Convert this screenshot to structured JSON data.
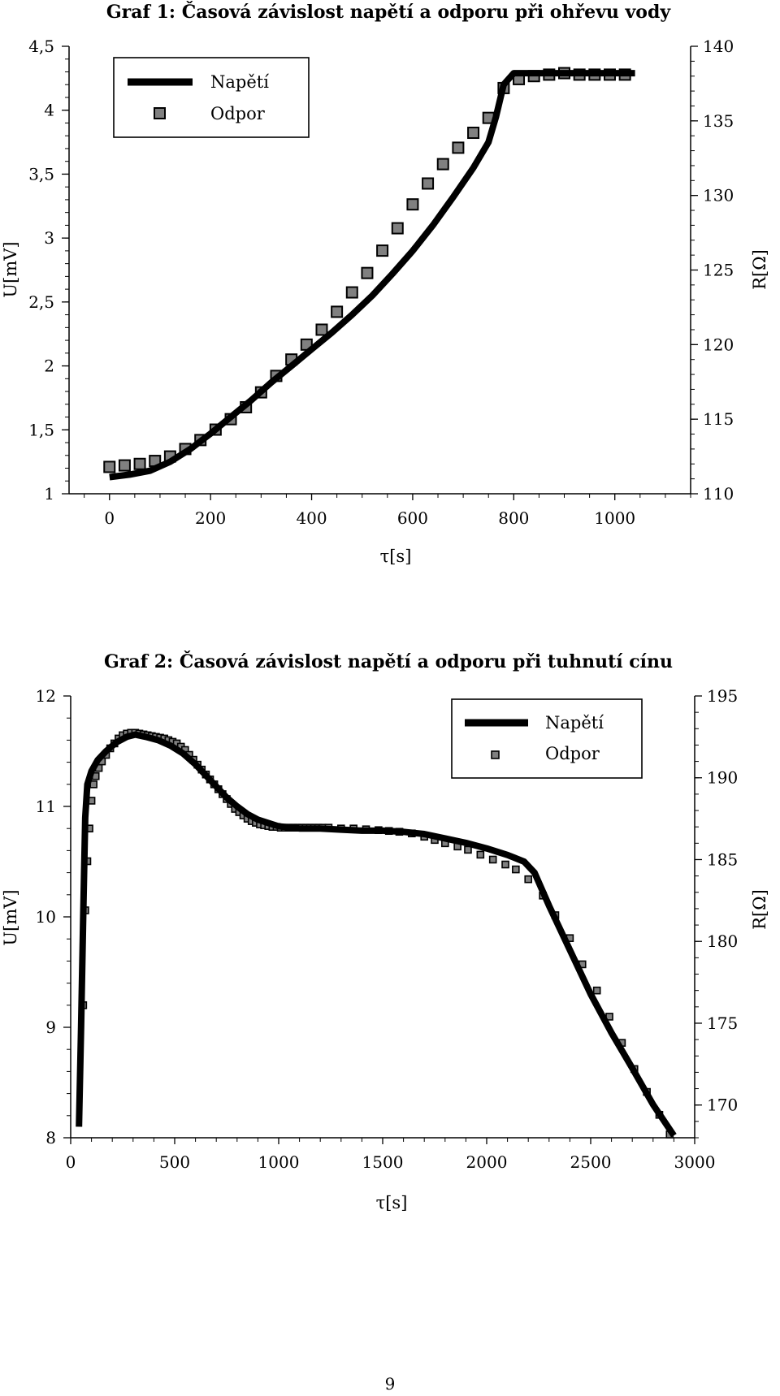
{
  "page": {
    "number": "9"
  },
  "chart_data": [
    {
      "type": "line",
      "title": "Graf 1: Časová závislost napětí a odporu při ohřevu vody",
      "xlabel": "τ[s]",
      "ylabel": "U[mV]",
      "ylabel_right": "R[Ω]",
      "xlim": [
        -80,
        1150
      ],
      "ylim": [
        1,
        4.5
      ],
      "ylim_right": [
        110,
        140
      ],
      "xticks": [
        "0",
        "200",
        "400",
        "600",
        "800",
        "1000"
      ],
      "yticks": [
        "1",
        "1,5",
        "2",
        "2,5",
        "3",
        "3,5",
        "4",
        "4,5"
      ],
      "yticks_right": [
        "110",
        "115",
        "120",
        "125",
        "130",
        "135",
        "140"
      ],
      "legend_position": "top-left",
      "grid": false,
      "series": [
        {
          "name": "Napětí",
          "axis": "left",
          "style": "line",
          "color": "#000000",
          "x": [
            0,
            40,
            80,
            120,
            160,
            200,
            240,
            280,
            320,
            360,
            400,
            440,
            480,
            520,
            560,
            600,
            640,
            680,
            720,
            750,
            765,
            780,
            800,
            840,
            900,
            960,
            1040
          ],
          "y": [
            1.13,
            1.15,
            1.18,
            1.25,
            1.35,
            1.47,
            1.6,
            1.73,
            1.87,
            2.0,
            2.13,
            2.26,
            2.4,
            2.55,
            2.72,
            2.9,
            3.1,
            3.32,
            3.55,
            3.75,
            3.95,
            4.2,
            4.29,
            4.29,
            4.29,
            4.29,
            4.29
          ]
        },
        {
          "name": "Odpor",
          "axis": "right",
          "style": "square-markers",
          "color": "#808080",
          "x": [
            0,
            30,
            60,
            90,
            120,
            150,
            180,
            210,
            240,
            270,
            300,
            330,
            360,
            390,
            420,
            450,
            480,
            510,
            540,
            570,
            600,
            630,
            660,
            690,
            720,
            750,
            780,
            810,
            840,
            870,
            900,
            930,
            960,
            990,
            1020
          ],
          "y": [
            111.8,
            111.9,
            112.0,
            112.2,
            112.5,
            113.0,
            113.6,
            114.3,
            115.0,
            115.8,
            116.8,
            117.9,
            119.0,
            120.0,
            121.0,
            122.2,
            123.5,
            124.8,
            126.3,
            127.8,
            129.4,
            130.8,
            132.1,
            133.2,
            134.2,
            135.2,
            137.2,
            137.8,
            138.0,
            138.1,
            138.2,
            138.1,
            138.1,
            138.1,
            138.1
          ]
        }
      ]
    },
    {
      "type": "line",
      "title": "Graf 2: Časová závislost napětí a odporu při tuhnutí cínu",
      "xlabel": "τ[s]",
      "ylabel": "U[mV]",
      "ylabel_right": "R[Ω]",
      "xlim": [
        0,
        3000
      ],
      "ylim": [
        8,
        12
      ],
      "ylim_right": [
        168,
        195
      ],
      "xticks": [
        "0",
        "500",
        "1000",
        "1500",
        "2000",
        "2500",
        "3000"
      ],
      "yticks": [
        "8",
        "9",
        "10",
        "11",
        "12"
      ],
      "yticks_right": [
        "170",
        "175",
        "180",
        "185",
        "190",
        "195"
      ],
      "legend_position": "top-right",
      "grid": false,
      "series": [
        {
          "name": "Napětí",
          "axis": "left",
          "style": "line",
          "color": "#000000",
          "x": [
            40,
            50,
            60,
            70,
            80,
            100,
            130,
            170,
            220,
            270,
            310,
            360,
            420,
            480,
            540,
            600,
            650,
            700,
            750,
            800,
            850,
            900,
            950,
            1000,
            1100,
            1200,
            1300,
            1400,
            1500,
            1600,
            1700,
            1800,
            1900,
            2000,
            2100,
            2180,
            2230,
            2300,
            2400,
            2500,
            2600,
            2700,
            2800,
            2900
          ],
          "y": [
            8.1,
            9.0,
            10.0,
            10.9,
            11.2,
            11.32,
            11.42,
            11.5,
            11.58,
            11.63,
            11.65,
            11.63,
            11.6,
            11.55,
            11.48,
            11.38,
            11.28,
            11.18,
            11.08,
            11.0,
            10.93,
            10.88,
            10.85,
            10.82,
            10.8,
            10.8,
            10.79,
            10.78,
            10.78,
            10.77,
            10.75,
            10.71,
            10.67,
            10.62,
            10.56,
            10.5,
            10.4,
            10.1,
            9.7,
            9.3,
            8.95,
            8.63,
            8.3,
            8.02
          ]
        },
        {
          "name": "Odpor",
          "axis": "right",
          "style": "square-markers",
          "color": "#808080",
          "x": [
            60,
            70,
            80,
            90,
            100,
            110,
            120,
            135,
            150,
            170,
            190,
            210,
            230,
            250,
            270,
            290,
            310,
            330,
            350,
            370,
            390,
            410,
            430,
            450,
            470,
            490,
            510,
            530,
            550,
            570,
            590,
            610,
            630,
            650,
            670,
            690,
            710,
            730,
            750,
            770,
            790,
            810,
            830,
            850,
            870,
            890,
            910,
            930,
            950,
            970,
            990,
            1010,
            1030,
            1050,
            1070,
            1090,
            1110,
            1130,
            1150,
            1170,
            1190,
            1210,
            1240,
            1300,
            1360,
            1420,
            1480,
            1530,
            1580,
            1640,
            1700,
            1750,
            1800,
            1860,
            1910,
            1970,
            2030,
            2090,
            2140,
            2200,
            2270,
            2330,
            2400,
            2460,
            2530,
            2590,
            2650,
            2710,
            2770,
            2830,
            2880
          ],
          "y": [
            176.1,
            181.9,
            184.9,
            186.9,
            188.6,
            189.6,
            190.1,
            190.6,
            191.0,
            191.4,
            191.8,
            192.1,
            192.4,
            192.6,
            192.7,
            192.75,
            192.75,
            192.7,
            192.65,
            192.6,
            192.55,
            192.5,
            192.45,
            192.4,
            192.3,
            192.2,
            192.1,
            191.9,
            191.7,
            191.4,
            191.1,
            190.8,
            190.5,
            190.2,
            189.9,
            189.6,
            189.3,
            189.0,
            188.7,
            188.4,
            188.1,
            187.9,
            187.7,
            187.5,
            187.35,
            187.25,
            187.15,
            187.1,
            187.05,
            187.0,
            187.0,
            186.95,
            186.95,
            186.95,
            186.95,
            186.95,
            186.95,
            186.95,
            186.95,
            186.95,
            186.95,
            186.95,
            186.95,
            186.9,
            186.9,
            186.85,
            186.8,
            186.75,
            186.7,
            186.6,
            186.4,
            186.2,
            186.0,
            185.8,
            185.6,
            185.3,
            185.0,
            184.7,
            184.4,
            183.8,
            182.8,
            181.6,
            180.2,
            178.6,
            177.0,
            175.4,
            173.8,
            172.2,
            170.8,
            169.4,
            168.2
          ]
        }
      ]
    }
  ]
}
